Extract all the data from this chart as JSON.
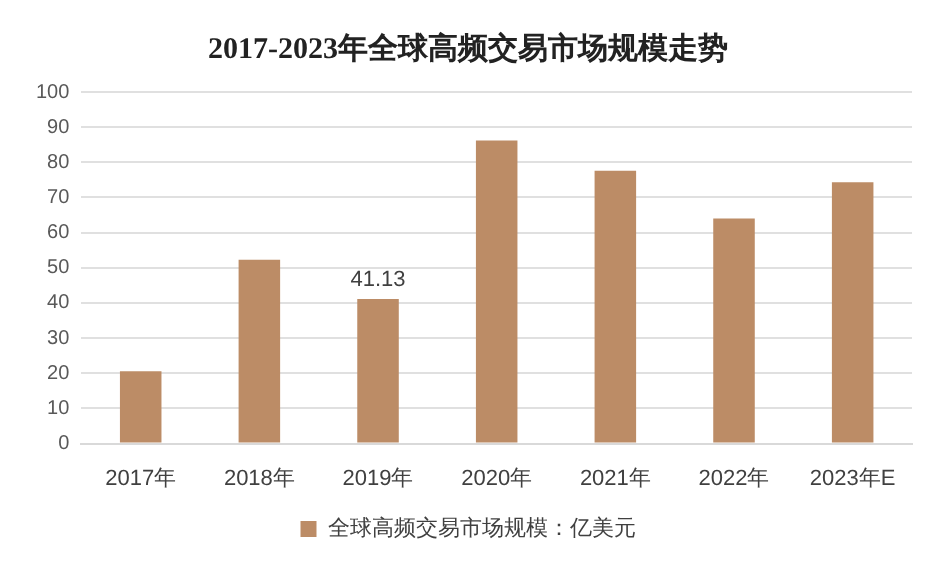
{
  "chart_data": {
    "type": "bar",
    "title": "2017-2023年全球高频交易市场规模走势",
    "categories": [
      "2017年",
      "2018年",
      "2019年",
      "2020年",
      "2021年",
      "2022年",
      "2023年E"
    ],
    "series": [
      {
        "name": "全球高频交易市场规模：亿美元",
        "color": "#bc8c66",
        "values": [
          20.6,
          52.3,
          41.13,
          86.2,
          77.6,
          64.0,
          74.3
        ],
        "value_labels": [
          null,
          null,
          "41.13",
          null,
          null,
          null,
          null
        ]
      }
    ],
    "ylim": [
      0,
      100
    ],
    "yticks": [
      0,
      10,
      20,
      30,
      40,
      50,
      60,
      70,
      80,
      90,
      100
    ],
    "grid": "y",
    "legend": "bottom"
  }
}
